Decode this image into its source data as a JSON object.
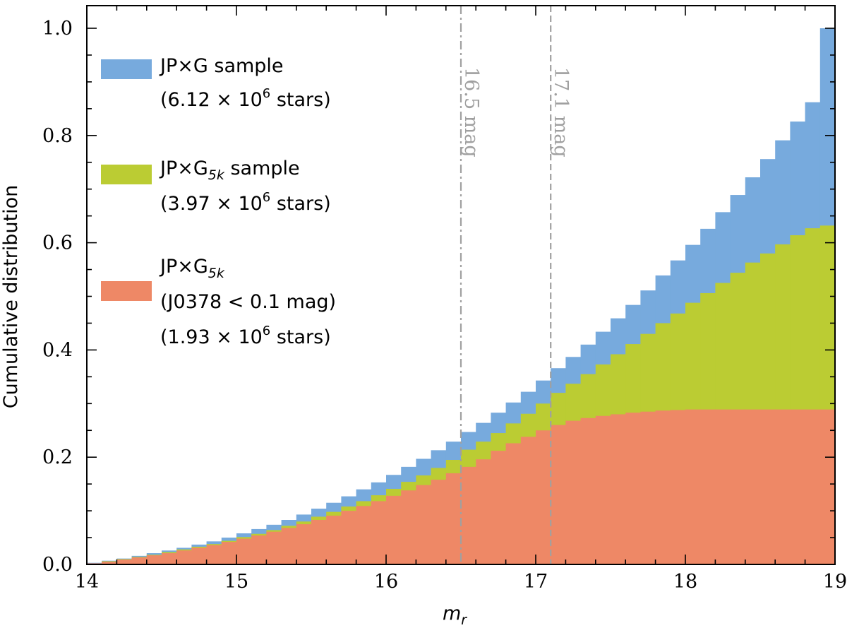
{
  "chart_data": {
    "type": "bar",
    "xlabel": "m_r",
    "ylabel": "Cumulative distribution",
    "xlim": [
      14,
      19
    ],
    "ylim": [
      0,
      1.05
    ],
    "xticks": [
      "14",
      "15",
      "16",
      "17",
      "18",
      "19"
    ],
    "yticks": [
      "0.0",
      "0.2",
      "0.4",
      "0.6",
      "0.8",
      "1.0"
    ],
    "grid": false,
    "legend_position": "top-left",
    "bin_width": 0.1,
    "bin_starts": [
      14.0,
      14.1,
      14.2,
      14.3,
      14.4,
      14.5,
      14.6,
      14.7,
      14.8,
      14.9,
      15.0,
      15.1,
      15.2,
      15.3,
      15.4,
      15.5,
      15.6,
      15.7,
      15.8,
      15.9,
      16.0,
      16.1,
      16.2,
      16.3,
      16.4,
      16.5,
      16.6,
      16.7,
      16.8,
      16.9,
      17.0,
      17.1,
      17.2,
      17.3,
      17.4,
      17.5,
      17.6,
      17.7,
      17.8,
      17.9,
      18.0,
      18.1,
      18.2,
      18.3,
      18.4,
      18.5,
      18.6,
      18.7,
      18.8,
      18.9
    ],
    "series": [
      {
        "name": "JP×G sample",
        "name_line2": "(6.12 × 10",
        "name_line2_sup": "6",
        "name_line2_end": " stars)",
        "color": "#77aadd",
        "values": [
          0.003,
          0.007,
          0.011,
          0.016,
          0.021,
          0.026,
          0.031,
          0.037,
          0.043,
          0.05,
          0.058,
          0.066,
          0.074,
          0.083,
          0.093,
          0.104,
          0.115,
          0.127,
          0.14,
          0.153,
          0.167,
          0.182,
          0.197,
          0.213,
          0.229,
          0.247,
          0.264,
          0.283,
          0.302,
          0.322,
          0.343,
          0.366,
          0.387,
          0.41,
          0.434,
          0.459,
          0.484,
          0.511,
          0.539,
          0.567,
          0.596,
          0.626,
          0.657,
          0.689,
          0.722,
          0.756,
          0.791,
          0.826,
          0.862,
          1.0
        ]
      },
      {
        "name": "JP×G",
        "name_sub": "5k",
        "name_end": " sample",
        "name_line2": "(3.97 × 10",
        "name_line2_sup": "6",
        "name_line2_end": " stars)",
        "color": "#bbcc33",
        "values": [
          0.002,
          0.006,
          0.01,
          0.014,
          0.018,
          0.023,
          0.028,
          0.033,
          0.038,
          0.044,
          0.051,
          0.057,
          0.064,
          0.072,
          0.08,
          0.089,
          0.098,
          0.108,
          0.118,
          0.129,
          0.141,
          0.154,
          0.166,
          0.18,
          0.195,
          0.214,
          0.229,
          0.245,
          0.263,
          0.281,
          0.3,
          0.32,
          0.337,
          0.355,
          0.373,
          0.392,
          0.411,
          0.43,
          0.45,
          0.468,
          0.488,
          0.506,
          0.525,
          0.544,
          0.563,
          0.58,
          0.597,
          0.614,
          0.627,
          0.632
        ]
      },
      {
        "name": "JP×G",
        "name_sub": "5k",
        "name_line2": "(J0378 < 0.1 mag)",
        "name_line3": "(1.93 × 10",
        "name_line3_sup": "6",
        "name_line3_end": " stars)",
        "color": "#ee8866",
        "values": [
          0.002,
          0.005,
          0.009,
          0.013,
          0.017,
          0.021,
          0.026,
          0.031,
          0.036,
          0.042,
          0.048,
          0.054,
          0.061,
          0.068,
          0.075,
          0.083,
          0.091,
          0.1,
          0.109,
          0.118,
          0.128,
          0.138,
          0.148,
          0.158,
          0.17,
          0.182,
          0.196,
          0.212,
          0.226,
          0.238,
          0.25,
          0.26,
          0.268,
          0.273,
          0.277,
          0.28,
          0.283,
          0.285,
          0.287,
          0.288,
          0.289,
          0.289,
          0.289,
          0.289,
          0.289,
          0.289,
          0.289,
          0.289,
          0.289,
          0.289
        ]
      }
    ],
    "vlines": [
      {
        "x": 16.5,
        "label": "16.5 mag",
        "style": "dashdot",
        "color": "#a0a0a0"
      },
      {
        "x": 17.1,
        "label": "17.1 mag",
        "style": "dashed",
        "color": "#a0a0a0"
      }
    ]
  }
}
